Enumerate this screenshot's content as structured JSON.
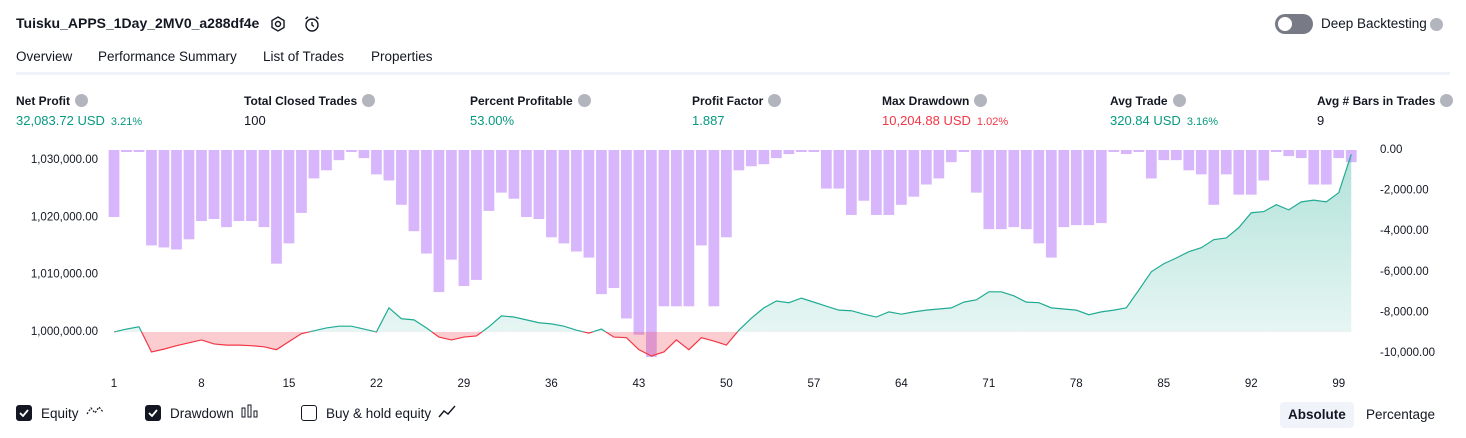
{
  "header": {
    "title": "Tuisku_APPS_1Day_2MV0_a288df4e",
    "deep_backtesting": "Deep Backtesting",
    "deep_backtesting_on": false
  },
  "tabs": {
    "items": [
      "Overview",
      "Performance Summary",
      "List of Trades",
      "Properties"
    ],
    "active": 0
  },
  "stats": [
    {
      "label": "Net Profit",
      "value": "32,083.72 USD",
      "pct": "3.21%",
      "color": "#089981"
    },
    {
      "label": "Total Closed Trades",
      "value": "100",
      "color": "#131722"
    },
    {
      "label": "Percent Profitable",
      "value": "53.00%",
      "color": "#089981"
    },
    {
      "label": "Profit Factor",
      "value": "1.887",
      "color": "#089981"
    },
    {
      "label": "Max Drawdown",
      "value": "10,204.88 USD",
      "pct": "1.02%",
      "color": "#f23645"
    },
    {
      "label": "Avg Trade",
      "value": "320.84 USD",
      "pct": "3.16%",
      "color": "#089981"
    },
    {
      "label": "Avg # Bars in Trades",
      "value": "9",
      "color": "#131722"
    }
  ],
  "chart_data": {
    "type": "equity-drawdown",
    "x": [
      1,
      2,
      3,
      4,
      5,
      6,
      7,
      8,
      9,
      10,
      11,
      12,
      13,
      14,
      15,
      16,
      17,
      18,
      19,
      20,
      21,
      22,
      23,
      24,
      25,
      26,
      27,
      28,
      29,
      30,
      31,
      32,
      33,
      34,
      35,
      36,
      37,
      38,
      39,
      40,
      41,
      42,
      43,
      44,
      45,
      46,
      47,
      48,
      49,
      50,
      51,
      52,
      53,
      54,
      55,
      56,
      57,
      58,
      59,
      60,
      61,
      62,
      63,
      64,
      65,
      66,
      67,
      68,
      69,
      70,
      71,
      72,
      73,
      74,
      75,
      76,
      77,
      78,
      79,
      80,
      81,
      82,
      83,
      84,
      85,
      86,
      87,
      88,
      89,
      90,
      91,
      92,
      93,
      94,
      95,
      96,
      97,
      98,
      99,
      100
    ],
    "series": [
      {
        "name": "Equity",
        "color": "#22ab94",
        "negative_color": "#f23645",
        "axis": "y",
        "values": [
          1000000,
          1000500,
          1000900,
          996500,
          997000,
          997600,
          998100,
          998600,
          997900,
          997700,
          997700,
          997600,
          997400,
          996900,
          998300,
          999700,
          1000200,
          1000700,
          1001000,
          1001000,
          1000500,
          1000000,
          1004200,
          1002300,
          1002100,
          1000700,
          999100,
          998600,
          999100,
          999300,
          1000900,
          1002800,
          1002600,
          1002100,
          1001600,
          1001400,
          1001000,
          1000300,
          999800,
          1000500,
          999100,
          999000,
          996900,
          995800,
          996500,
          998600,
          996900,
          999000,
          998400,
          997700,
          1000300,
          1002400,
          1004200,
          1005400,
          1005100,
          1005900,
          1005200,
          1004500,
          1003800,
          1003700,
          1003100,
          1002600,
          1003500,
          1003100,
          1003500,
          1003800,
          1004000,
          1004200,
          1005200,
          1005600,
          1007000,
          1007000,
          1006300,
          1005200,
          1005100,
          1004200,
          1004000,
          1003800,
          1003000,
          1003500,
          1003800,
          1004200,
          1007300,
          1010500,
          1011900,
          1012900,
          1014000,
          1014700,
          1016100,
          1016400,
          1018200,
          1020800,
          1021000,
          1022200,
          1021300,
          1022700,
          1023000,
          1022700,
          1024300,
          1031000
        ]
      },
      {
        "name": "Drawdown",
        "color": "#d8b6fb",
        "axis": "y2",
        "values": [
          -3300,
          -100,
          -100,
          -4700,
          -4800,
          -4900,
          -4400,
          -3500,
          -3400,
          -3800,
          -3500,
          -3500,
          -3800,
          -5600,
          -4600,
          -3100,
          -1400,
          -1000,
          -500,
          -100,
          -400,
          -1200,
          -1500,
          -2700,
          -4000,
          -5100,
          -7000,
          -5400,
          -6700,
          -6400,
          -3000,
          -2100,
          -2400,
          -3300,
          -3400,
          -4300,
          -4600,
          -5000,
          -5300,
          -7100,
          -6800,
          -8300,
          -9100,
          -10200,
          -7700,
          -7700,
          -7700,
          -4700,
          -7700,
          -4300,
          -1000,
          -800,
          -700,
          -400,
          -200,
          -100,
          -100,
          -1900,
          -1900,
          -3200,
          -2500,
          -3200,
          -3200,
          -2700,
          -2300,
          -1700,
          -1400,
          -600,
          -100,
          -2100,
          -3900,
          -3900,
          -3800,
          -3900,
          -4600,
          -5300,
          -3800,
          -3700,
          -3700,
          -3600,
          -100,
          -200,
          -100,
          -1400,
          -500,
          -500,
          -1000,
          -1200,
          -2700,
          -1200,
          -2200,
          -2200,
          -1500,
          -100,
          -300,
          -400,
          -1700,
          -1700,
          -400,
          -600
        ]
      }
    ],
    "xlim": [
      0,
      101.5
    ],
    "xticks": [
      1,
      8,
      15,
      22,
      29,
      36,
      43,
      50,
      57,
      64,
      71,
      78,
      85,
      92,
      99
    ],
    "ylim": [
      995100,
      1031750
    ],
    "yticks": [
      {
        "value": 1000000,
        "label": "1,000,000.00"
      },
      {
        "value": 1010000,
        "label": "1,010,000.00"
      },
      {
        "value": 1020000,
        "label": "1,020,000.00"
      },
      {
        "value": 1030000,
        "label": "1,030,000.00"
      }
    ],
    "y2lim": [
      -10345,
      0
    ],
    "y2ticks": [
      {
        "value": 0,
        "label": "0.00"
      },
      {
        "value": -2000,
        "label": "-2,000.00"
      },
      {
        "value": -4000,
        "label": "-4,000.00"
      },
      {
        "value": -6000,
        "label": "-6,000.00"
      },
      {
        "value": -8000,
        "label": "-8,000.00"
      },
      {
        "value": -10000,
        "label": "-10,000.00"
      }
    ],
    "grid": false
  },
  "legend": [
    {
      "label": "Equity",
      "checked": true
    },
    {
      "label": "Drawdown",
      "checked": true
    },
    {
      "label": "Buy & hold equity",
      "checked": false
    }
  ],
  "mode": {
    "options": [
      "Absolute",
      "Percentage"
    ],
    "selected": 0
  }
}
